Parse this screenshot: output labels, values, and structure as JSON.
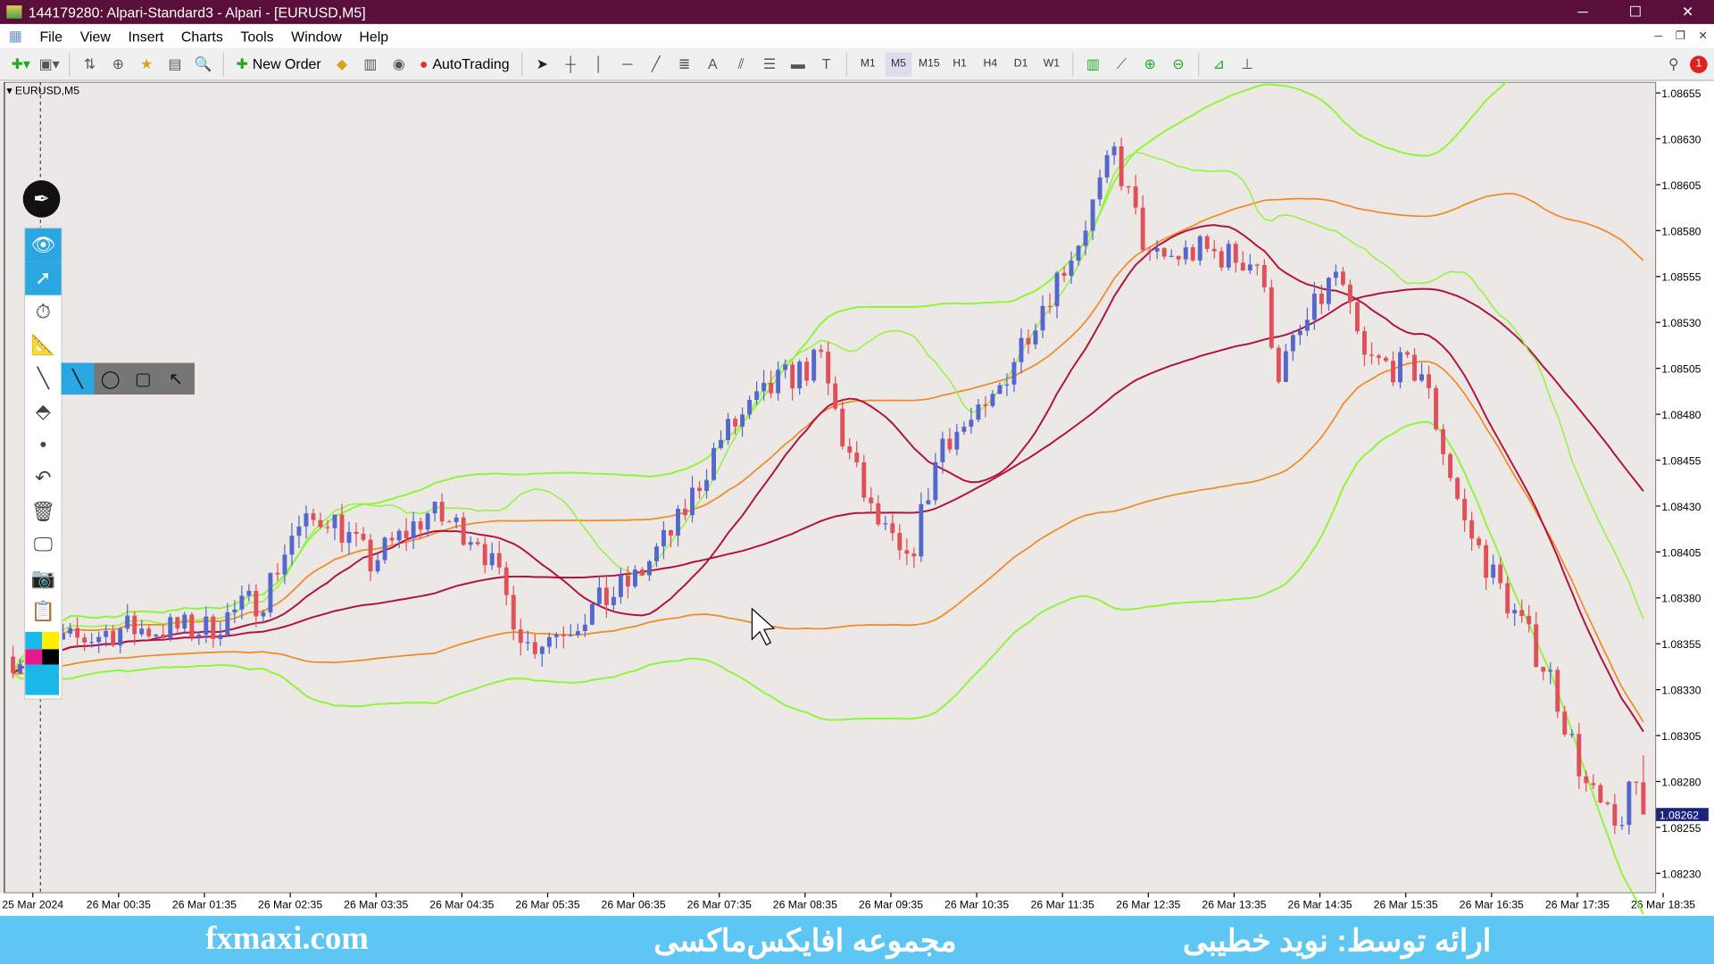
{
  "window": {
    "title": "144179280: Alpari-Standard3 - Alpari - [EURUSD,M5]",
    "controls": [
      "─",
      "☐",
      "✕"
    ]
  },
  "menu": [
    "File",
    "View",
    "Insert",
    "Charts",
    "Tools",
    "Window",
    "Help"
  ],
  "toolbar": {
    "new_order": "New Order",
    "autotrading": "AutoTrading",
    "timeframes": [
      "M1",
      "M5",
      "M15",
      "H1",
      "H4",
      "D1",
      "W1"
    ],
    "active_timeframe": "M5",
    "alert_count": "1"
  },
  "chart": {
    "symbol": "EURUSD,M5",
    "current_price": "1.08262",
    "price_labels": [
      "1.08655",
      "1.08630",
      "1.08605",
      "1.08580",
      "1.08555",
      "1.08530",
      "1.08505",
      "1.08480",
      "1.08455",
      "1.08430",
      "1.08405",
      "1.08380",
      "1.08355",
      "1.08330",
      "1.08305",
      "1.08280",
      "1.08255",
      "1.08230"
    ],
    "time_labels": [
      "25 Mar 2024",
      "26 Mar 00:35",
      "26 Mar 01:35",
      "26 Mar 02:35",
      "26 Mar 03:35",
      "26 Mar 04:35",
      "26 Mar 05:35",
      "26 Mar 06:35",
      "26 Mar 07:35",
      "26 Mar 08:35",
      "26 Mar 09:35",
      "26 Mar 10:35",
      "26 Mar 11:35",
      "26 Mar 12:35",
      "26 Mar 13:35",
      "26 Mar 14:35",
      "26 Mar 15:35",
      "26 Mar 16:35",
      "26 Mar 17:35",
      "26 Mar 18:35"
    ],
    "colors": {
      "bull": "#5566cc",
      "bear": "#e0505a",
      "middle": "#b0123f",
      "band_inner": "#f08a24",
      "band_outer": "#8ef53a",
      "background": "#ece8e6"
    },
    "price_path": [
      [
        "25 Mar 23:20",
        1.08348
      ],
      [
        "26 Mar 00:35",
        1.08363
      ],
      [
        "26 Mar 01:35",
        1.08363
      ],
      [
        "26 Mar 02:15",
        1.08381
      ],
      [
        "26 Mar 02:35",
        1.08414
      ],
      [
        "26 Mar 03:00",
        1.08426
      ],
      [
        "26 Mar 03:30",
        1.08399
      ],
      [
        "26 Mar 04:10",
        1.08426
      ],
      [
        "26 Mar 04:45",
        1.08414
      ],
      [
        "26 Mar 05:20",
        1.08354
      ],
      [
        "26 Mar 05:50",
        1.08366
      ],
      [
        "26 Mar 06:35",
        1.0839
      ],
      [
        "26 Mar 07:05",
        1.0842
      ],
      [
        "26 Mar 07:35",
        1.08467
      ],
      [
        "26 Mar 08:15",
        1.08497
      ],
      [
        "26 Mar 08:45",
        1.08509
      ],
      [
        "26 Mar 09:00",
        1.08467
      ],
      [
        "26 Mar 09:20",
        1.08426
      ],
      [
        "26 Mar 09:45",
        1.08396
      ],
      [
        "26 Mar 10:10",
        1.08467
      ],
      [
        "26 Mar 10:40",
        1.08479
      ],
      [
        "26 Mar 11:10",
        1.08527
      ],
      [
        "26 Mar 11:45",
        1.08575
      ],
      [
        "26 Mar 12:10",
        1.08622
      ],
      [
        "26 Mar 12:35",
        1.08563
      ],
      [
        "26 Mar 13:10",
        1.08569
      ],
      [
        "26 Mar 13:50",
        1.08563
      ],
      [
        "26 Mar 14:05",
        1.08503
      ],
      [
        "26 Mar 14:45",
        1.08557
      ],
      [
        "26 Mar 15:05",
        1.08509
      ],
      [
        "26 Mar 15:45",
        1.08503
      ],
      [
        "26 Mar 16:15",
        1.0842
      ],
      [
        "26 Mar 16:45",
        1.08378
      ],
      [
        "26 Mar 17:15",
        1.08337
      ],
      [
        "26 Mar 17:40",
        1.08277
      ],
      [
        "26 Mar 18:00",
        1.08253
      ],
      [
        "26 Mar 18:20",
        1.08289
      ]
    ]
  },
  "drawing_tools": [
    "eye-icon",
    "cursor-icon",
    "stopwatch-icon",
    "ruler-icon",
    "line-icon",
    "eraser-icon",
    "dot-icon",
    "undo-icon",
    "trash-icon",
    "monitor-icon",
    "camera-icon",
    "notes-icon"
  ],
  "banner": {
    "site": "fxmaxi.com",
    "collection": "مجموعه افایکس‌ماکسی",
    "presenter": "ارائه توسط: نوید خطیبی"
  }
}
